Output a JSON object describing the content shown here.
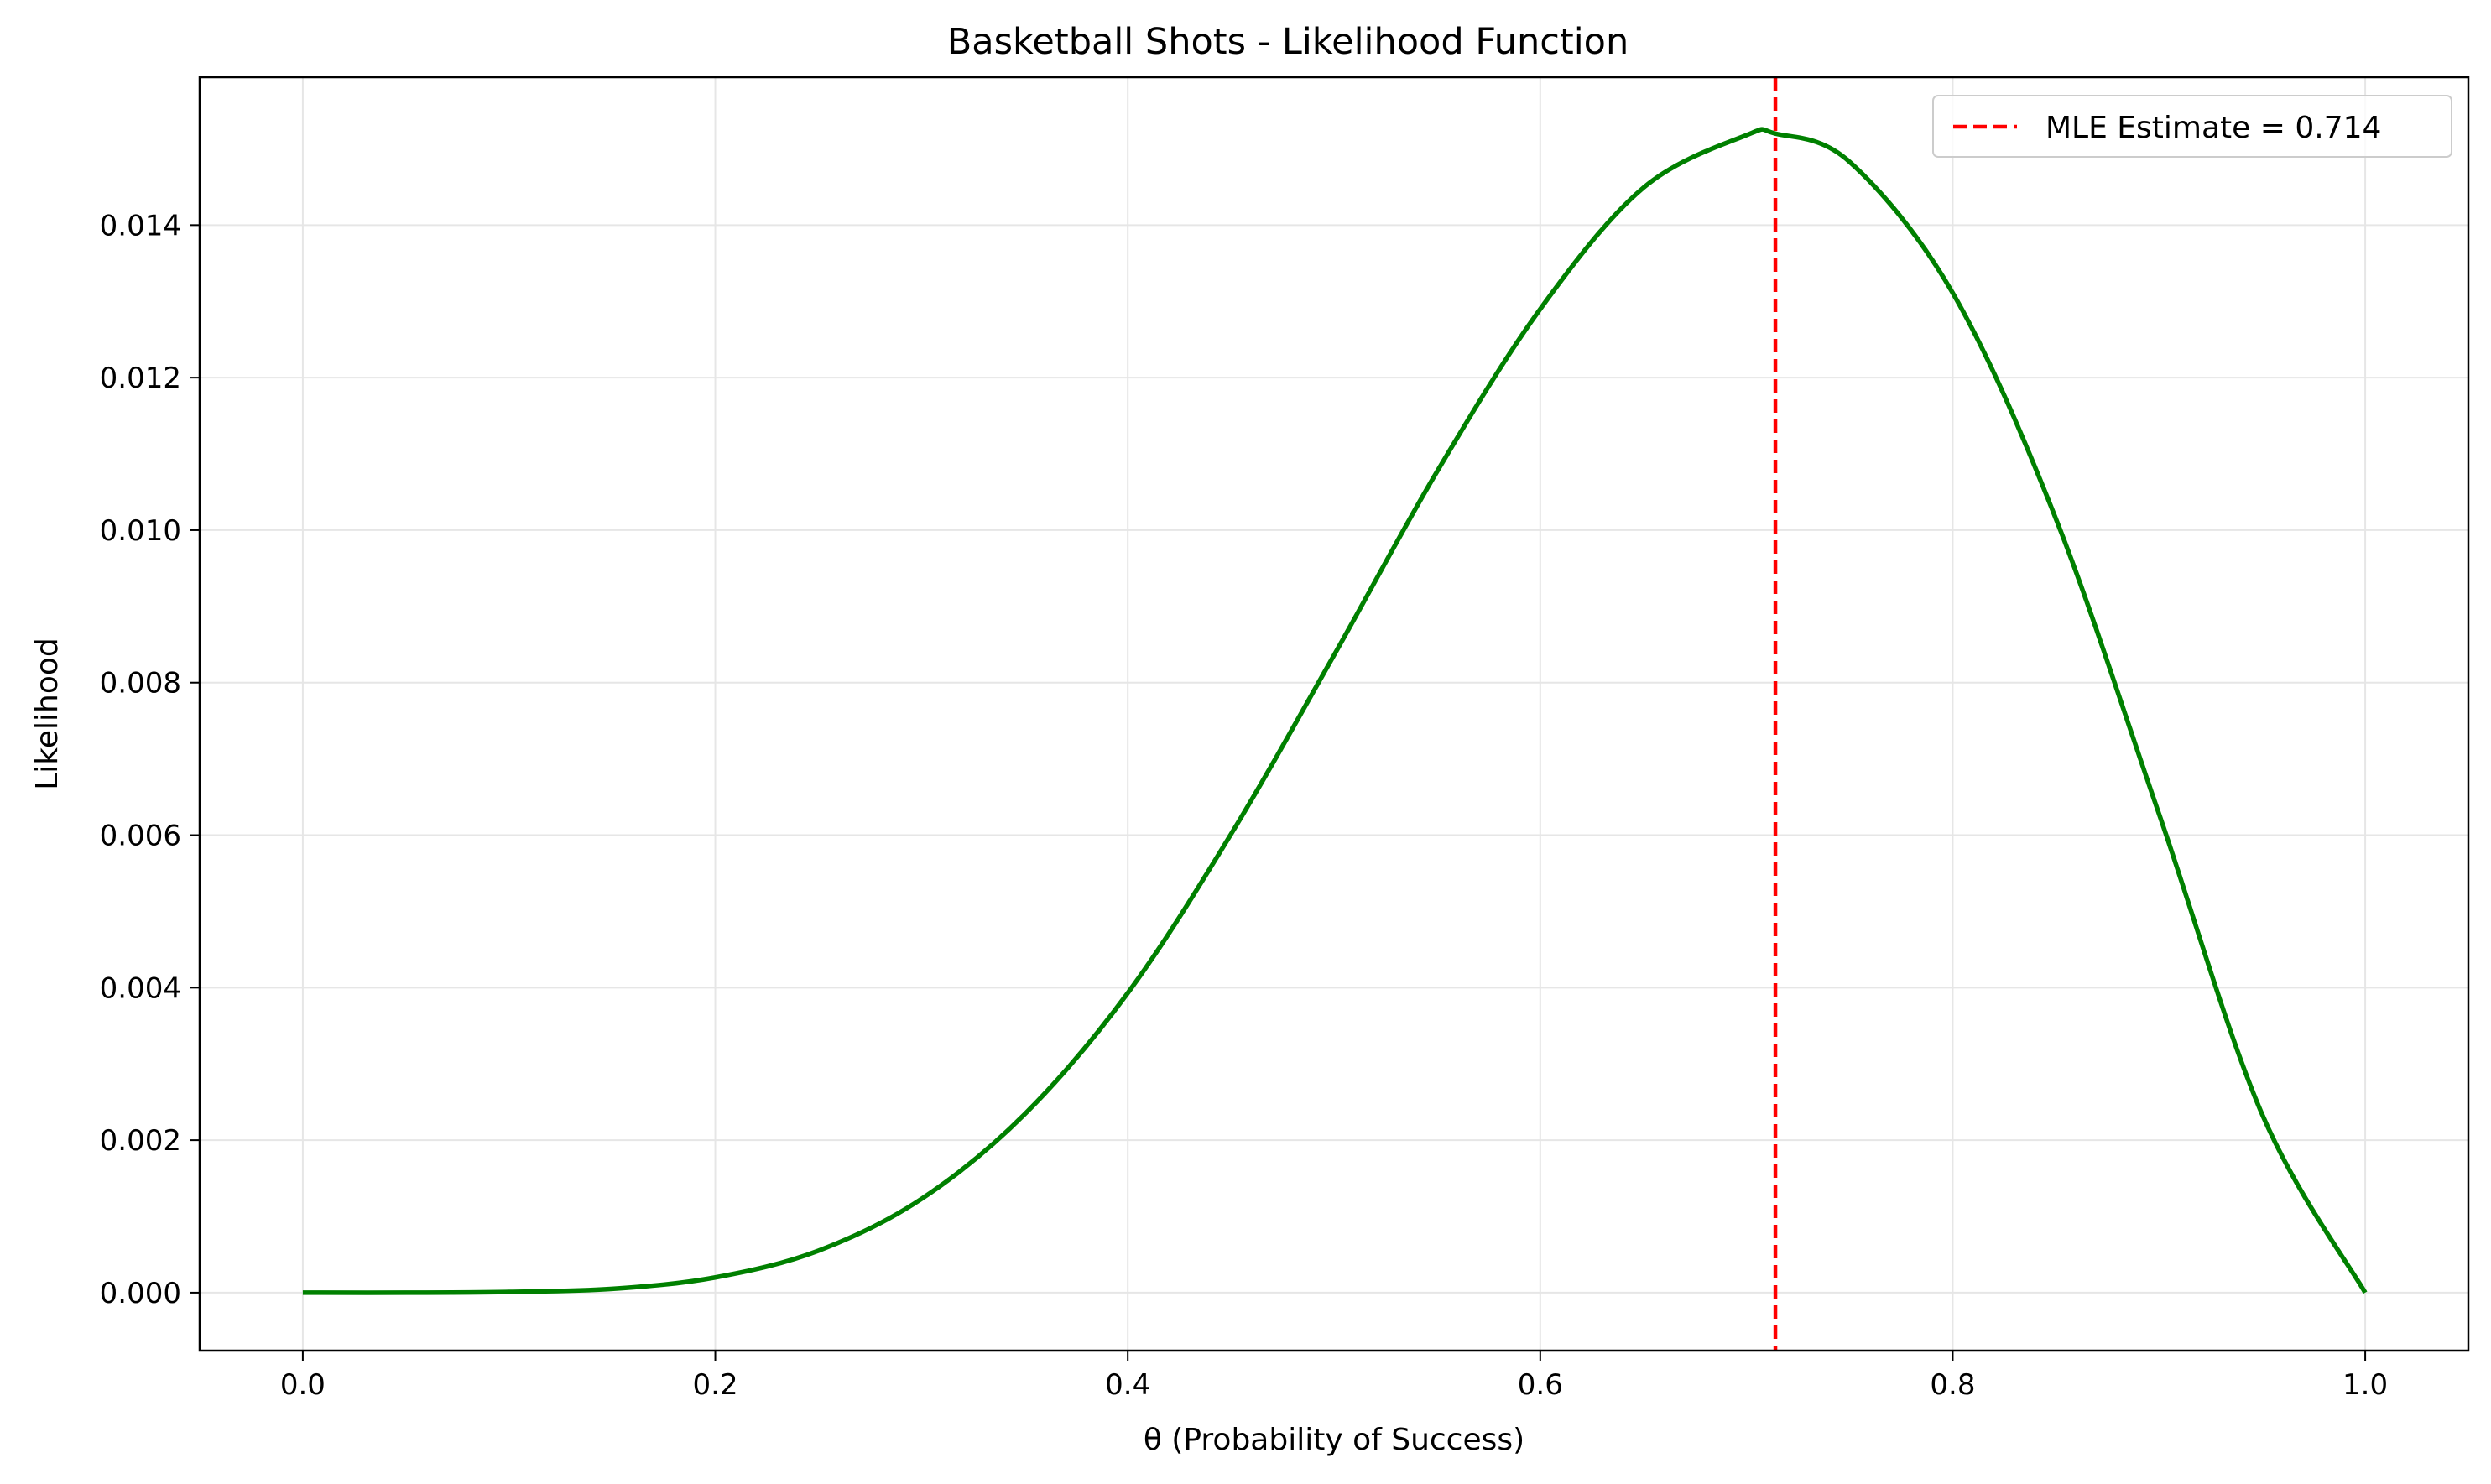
{
  "chart_data": {
    "type": "line",
    "title": "Basketball Shots - Likelihood Function",
    "xlabel": "θ (Probability of Success)",
    "ylabel": "Likelihood",
    "xlim": [
      -0.05,
      1.05
    ],
    "ylim": [
      -0.00076,
      0.01594
    ],
    "x_ticks": [
      0.0,
      0.2,
      0.4,
      0.6,
      0.8,
      1.0
    ],
    "x_tick_labels": [
      "0.0",
      "0.2",
      "0.4",
      "0.6",
      "0.8",
      "1.0"
    ],
    "y_ticks": [
      0.0,
      0.002,
      0.004,
      0.006,
      0.008,
      0.01,
      0.012,
      0.014
    ],
    "y_tick_labels": [
      "0.000",
      "0.002",
      "0.004",
      "0.006",
      "0.008",
      "0.010",
      "0.012",
      "0.014"
    ],
    "grid": true,
    "legend_position": "top-right",
    "series": [
      {
        "kind": "line",
        "color": "#008000",
        "x": [
          0.0,
          0.05,
          0.1,
          0.15,
          0.2,
          0.25,
          0.3,
          0.35,
          0.4,
          0.45,
          0.5,
          0.55,
          0.6,
          0.65,
          0.7,
          0.714,
          0.75,
          0.8,
          0.85,
          0.9,
          0.95,
          1.0
        ],
        "y": [
          0.0,
          0.0,
          1e-05,
          5e-05,
          0.0002,
          0.00055,
          0.00123,
          0.00234,
          0.00393,
          0.00601,
          0.00836,
          0.01077,
          0.0129,
          0.01449,
          0.01518,
          0.0152,
          0.01483,
          0.01311,
          0.01015,
          0.00628,
          0.00234,
          0.0
        ]
      },
      {
        "kind": "vline",
        "name": "MLE Estimate = 0.714",
        "color": "#ff0000",
        "x": 0.714,
        "dashed": true
      }
    ]
  }
}
